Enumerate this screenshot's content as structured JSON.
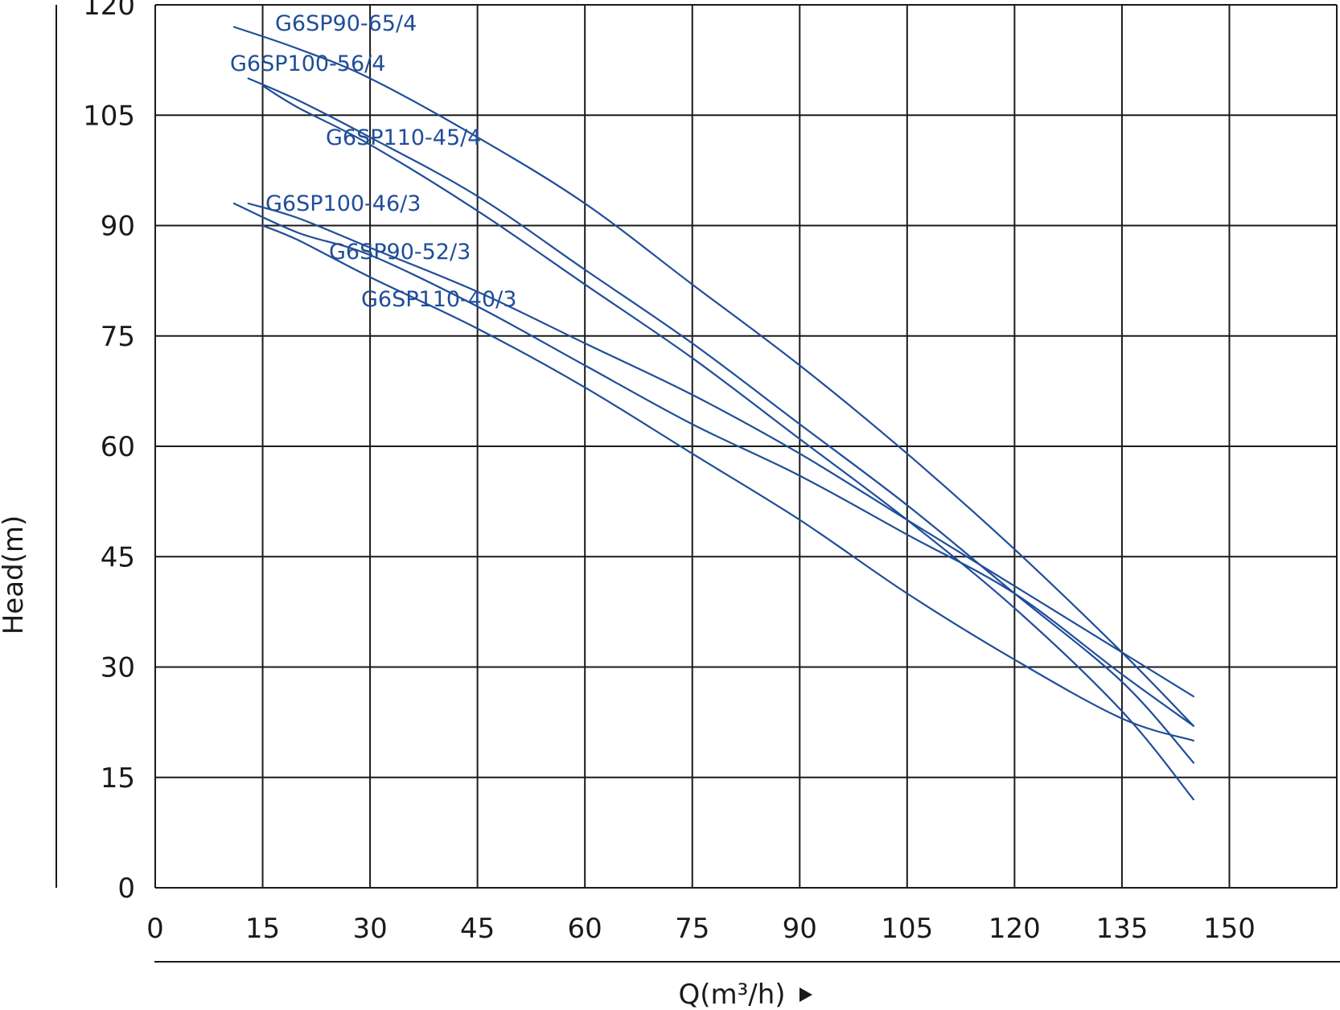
{
  "chart_data": {
    "type": "line",
    "xlabel": "Q(m³/h)",
    "ylabel": "Head(m)",
    "xlim": [
      0,
      165
    ],
    "ylim": [
      0,
      120
    ],
    "x_ticks": [
      "0",
      "15",
      "30",
      "45",
      "60",
      "75",
      "90",
      "105",
      "120",
      "135",
      "150"
    ],
    "y_ticks": [
      "0",
      "15",
      "30",
      "45",
      "60",
      "75",
      "90",
      "105",
      "120"
    ],
    "grid": true,
    "series_color": "#1f4e9a",
    "series": [
      {
        "name": "G6SP90-65/4",
        "x": [
          11,
          20,
          30,
          45,
          60,
          75,
          90,
          105,
          120,
          135,
          145
        ],
        "y": [
          117,
          114,
          110,
          102,
          93,
          82,
          71,
          59,
          46,
          32,
          22
        ]
      },
      {
        "name": "G6SP100-56/4",
        "x": [
          13,
          20,
          30,
          45,
          60,
          75,
          90,
          105,
          120,
          135,
          145
        ],
        "y": [
          110,
          107,
          102,
          94,
          84,
          74,
          63,
          52,
          40,
          28,
          17
        ]
      },
      {
        "name": "G6SP110-45/4",
        "x": [
          15,
          20,
          30,
          45,
          60,
          75,
          90,
          105,
          120,
          135,
          145
        ],
        "y": [
          109,
          106,
          101,
          92,
          82,
          72,
          61,
          50,
          38,
          24,
          12
        ]
      },
      {
        "name": "G6SP100-46/3",
        "x": [
          13,
          20,
          30,
          45,
          60,
          75,
          90,
          105,
          120,
          135,
          145
        ],
        "y": [
          93,
          91,
          87,
          81,
          74,
          67,
          59,
          50,
          41,
          32,
          26
        ]
      },
      {
        "name": "G6SP90-52/3",
        "x": [
          11,
          20,
          30,
          45,
          60,
          75,
          90,
          105,
          120,
          135,
          145
        ],
        "y": [
          93,
          89,
          86,
          79,
          71,
          63,
          56,
          48,
          40,
          29,
          22
        ]
      },
      {
        "name": "G6SP110-40/3",
        "x": [
          15,
          20,
          30,
          45,
          60,
          75,
          90,
          105,
          120,
          135,
          145
        ],
        "y": [
          90,
          88,
          83,
          76,
          68,
          59,
          50,
          40,
          31,
          23,
          20
        ]
      }
    ]
  }
}
